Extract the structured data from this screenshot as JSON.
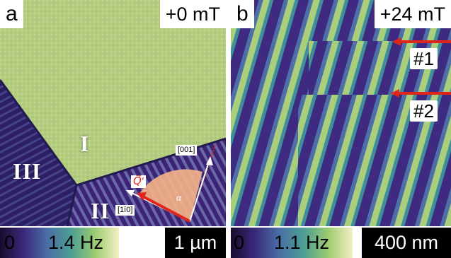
{
  "panel_a": {
    "tag": "a",
    "field": "+0 mT",
    "domains": [
      "I",
      "II",
      "III"
    ],
    "direction_001": "[001]",
    "direction_110": "[1ī0]",
    "q_label": "Q⃗′",
    "angle_label": "α",
    "colorbar": {
      "min": "0",
      "max": "1.4 Hz"
    },
    "scalebar": "1 µm"
  },
  "panel_b": {
    "tag": "b",
    "field": "+24 mT",
    "markers": [
      "#1",
      "#2"
    ],
    "colorbar": {
      "min": "0",
      "max": "1.1 Hz"
    },
    "scalebar": "400 nm"
  },
  "colors": {
    "domain_bright": "#b7cf84",
    "stripe_dark": "#3d2176",
    "stripe_light": "#c6dc8e",
    "arrow_red": "#e0251b",
    "angle_fill": "#f6b488"
  }
}
